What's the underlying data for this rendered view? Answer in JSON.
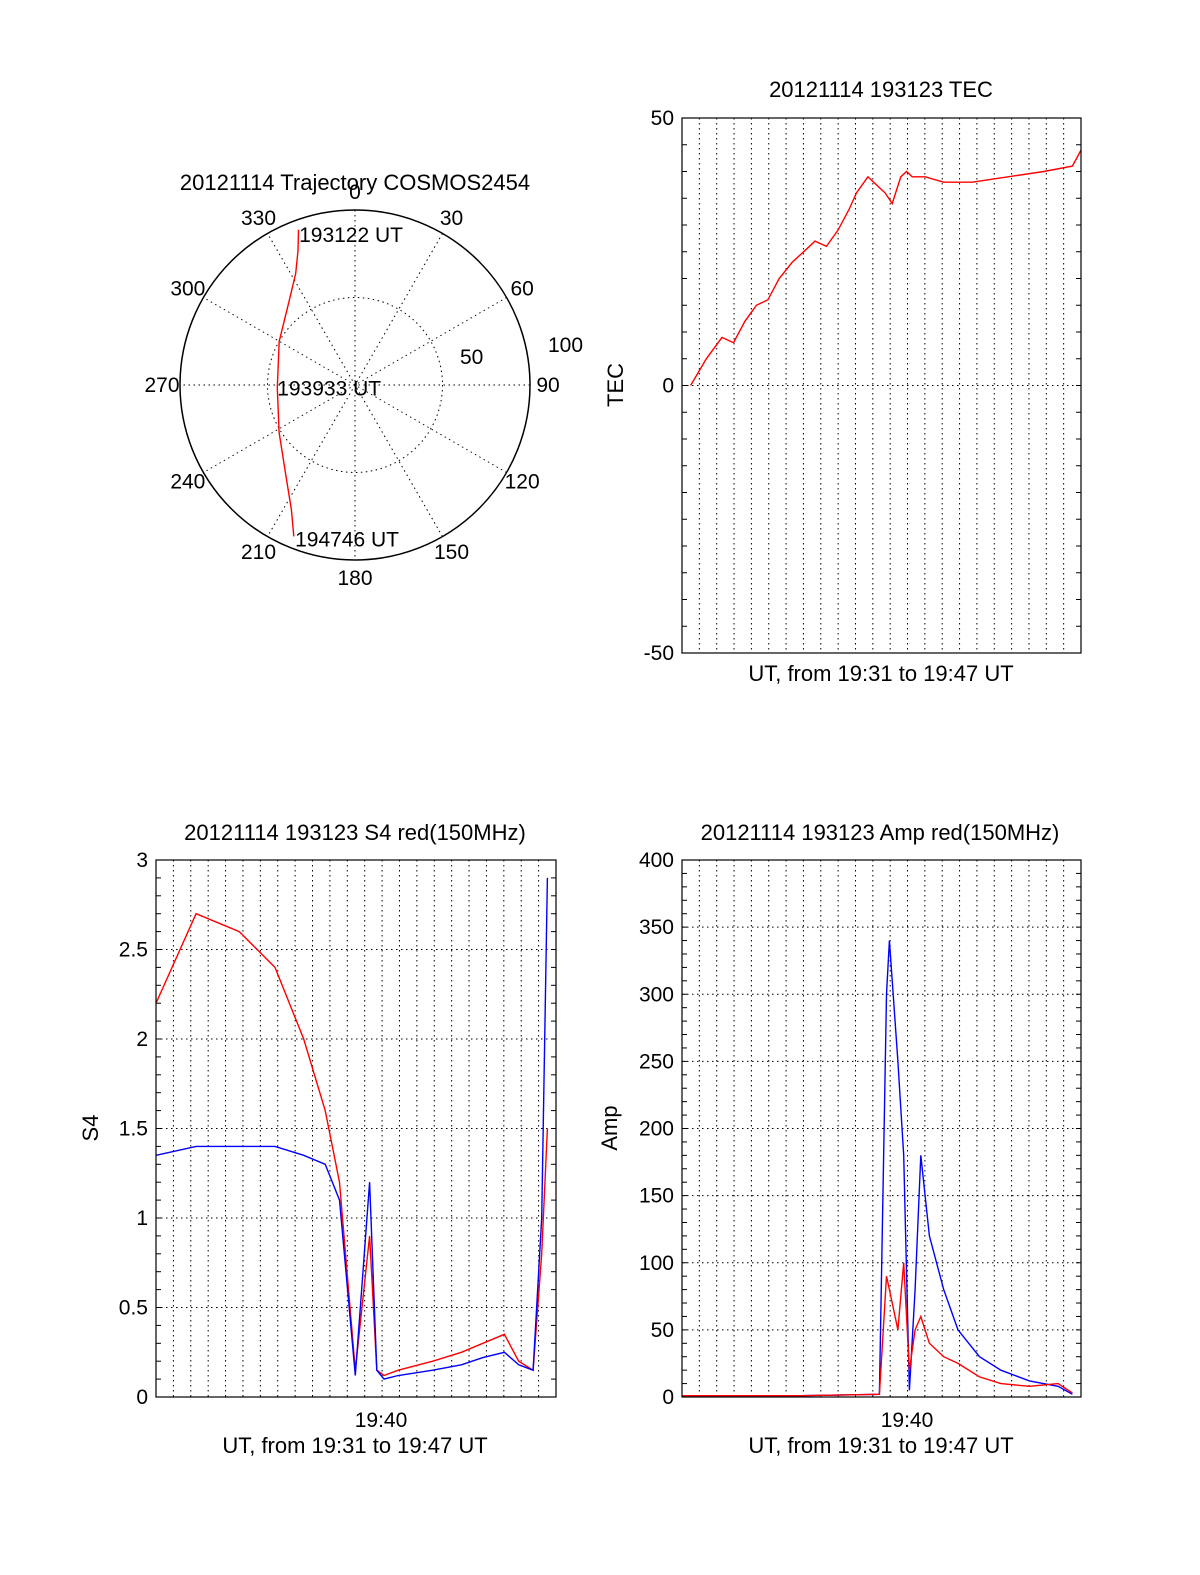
{
  "chart_data": [
    {
      "type": "polar",
      "title": "20121114 Trajectory COSMOS2454",
      "azimuth_labels": [
        "0",
        "30",
        "60",
        "90",
        "120",
        "150",
        "180",
        "210",
        "240",
        "270",
        "300",
        "330"
      ],
      "radial_labels": [
        "50",
        "100"
      ],
      "series": [
        {
          "color": "#ff0000",
          "points": [
            {
              "az": 340,
              "el": 5
            },
            {
              "az": 337,
              "el": 15
            },
            {
              "az": 332,
              "el": 25
            },
            {
              "az": 322,
              "el": 35
            },
            {
              "az": 300,
              "el": 45
            },
            {
              "az": 268,
              "el": 50
            },
            {
              "az": 238,
              "el": 44
            },
            {
              "az": 218,
              "el": 32
            },
            {
              "az": 207,
              "el": 18
            },
            {
              "az": 202,
              "el": 6
            }
          ]
        }
      ],
      "annotations": [
        {
          "text": "193122 UT",
          "az": 341,
          "el": 8
        },
        {
          "text": "193933 UT",
          "az": 268,
          "el": 52
        },
        {
          "text": "194746 UT",
          "az": 200,
          "el": 6
        }
      ]
    },
    {
      "type": "line",
      "title": "20121114 193123 TEC",
      "xlabel": "UT, from 19:31 to 19:47 UT",
      "ylabel": "TEC",
      "xlim": [
        19.517,
        19.796
      ],
      "ylim": [
        -50,
        50
      ],
      "yticks": [
        "50",
        "0",
        "-50"
      ],
      "grid": true,
      "series": [
        {
          "color": "#ff0000",
          "x": [
            19.523,
            19.534,
            19.545,
            19.553,
            19.561,
            19.569,
            19.577,
            19.585,
            19.594,
            19.602,
            19.61,
            19.618,
            19.626,
            19.634,
            19.639,
            19.647,
            19.655,
            19.659,
            19.664,
            19.67,
            19.674,
            19.678,
            19.687,
            19.7,
            19.72,
            19.745,
            19.77,
            19.79,
            19.796
          ],
          "values": [
            0,
            5,
            9,
            8,
            12,
            15,
            16,
            20,
            23,
            25,
            27,
            26,
            29,
            33,
            36,
            39,
            37,
            36,
            34,
            39,
            40,
            39,
            39,
            38,
            38,
            39,
            40,
            41,
            44
          ]
        }
      ]
    },
    {
      "type": "line",
      "title": "20121114 193123 S4 red(150MHz)",
      "xlabel": "UT, from 19:31 to 19:47 UT",
      "ylabel": "S4",
      "xlim": [
        19.517,
        19.796
      ],
      "ylim": [
        0,
        3
      ],
      "xticks": [
        "19:40"
      ],
      "yticks": [
        "0",
        "0.5",
        "1",
        "1.5",
        "2",
        "2.5",
        "3"
      ],
      "grid": true,
      "series": [
        {
          "color": "#ff0000",
          "x": [
            19.517,
            19.545,
            19.575,
            19.6,
            19.62,
            19.635,
            19.645,
            19.656,
            19.666,
            19.671,
            19.676,
            19.686,
            19.71,
            19.73,
            19.745,
            19.76,
            19.77,
            19.78,
            19.786,
            19.79
          ],
          "values": [
            2.2,
            2.7,
            2.6,
            2.4,
            2.0,
            1.6,
            1.2,
            0.15,
            0.9,
            0.15,
            0.12,
            0.15,
            0.2,
            0.25,
            0.3,
            0.35,
            0.2,
            0.15,
            0.8,
            1.5
          ]
        },
        {
          "color": "#0000ff",
          "x": [
            19.517,
            19.545,
            19.575,
            19.6,
            19.62,
            19.635,
            19.645,
            19.656,
            19.666,
            19.671,
            19.676,
            19.686,
            19.71,
            19.73,
            19.745,
            19.76,
            19.77,
            19.78,
            19.786,
            19.79
          ],
          "values": [
            1.35,
            1.4,
            1.4,
            1.4,
            1.35,
            1.3,
            1.1,
            0.12,
            1.2,
            0.15,
            0.1,
            0.12,
            0.15,
            0.18,
            0.22,
            0.25,
            0.18,
            0.15,
            1.0,
            2.9
          ]
        }
      ]
    },
    {
      "type": "line",
      "title": "20121114 193123 Amp red(150MHz)",
      "xlabel": "UT, from 19:31 to 19:47 UT",
      "ylabel": "Amp",
      "xlim": [
        19.517,
        19.796
      ],
      "ylim": [
        0,
        400
      ],
      "xticks": [
        "19:40"
      ],
      "yticks": [
        "0",
        "50",
        "100",
        "150",
        "200",
        "250",
        "300",
        "350",
        "400"
      ],
      "grid": true,
      "series": [
        {
          "color": "#0000ff",
          "x": [
            19.517,
            19.55,
            19.6,
            19.655,
            19.66,
            19.662,
            19.668,
            19.672,
            19.676,
            19.68,
            19.684,
            19.69,
            19.7,
            19.71,
            19.725,
            19.74,
            19.76,
            19.78,
            19.79
          ],
          "values": [
            1,
            1,
            1,
            2,
            300,
            340,
            250,
            180,
            5,
            80,
            180,
            120,
            80,
            50,
            30,
            20,
            12,
            8,
            2
          ]
        },
        {
          "color": "#ff0000",
          "x": [
            19.517,
            19.55,
            19.6,
            19.655,
            19.66,
            19.662,
            19.668,
            19.672,
            19.676,
            19.68,
            19.684,
            19.69,
            19.7,
            19.71,
            19.725,
            19.74,
            19.76,
            19.78,
            19.79
          ],
          "values": [
            1,
            1,
            1,
            2,
            90,
            80,
            50,
            100,
            20,
            50,
            60,
            40,
            30,
            25,
            15,
            10,
            8,
            10,
            3
          ]
        }
      ]
    }
  ]
}
